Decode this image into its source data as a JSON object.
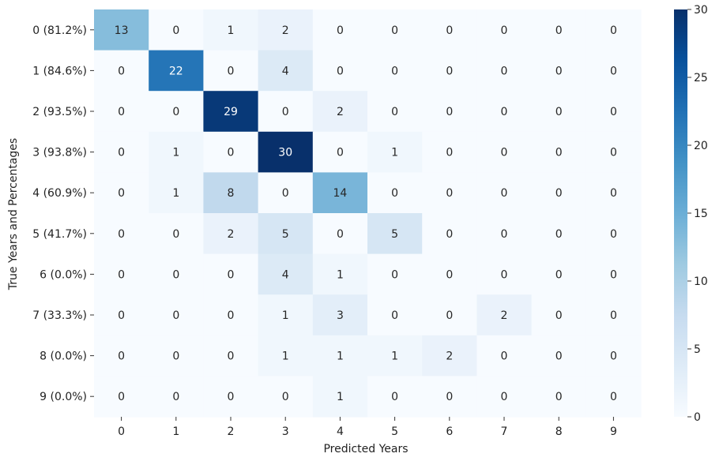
{
  "chart_data": {
    "type": "heatmap",
    "title": "",
    "xlabel": "Predicted Years",
    "ylabel": "True Years and Percentages",
    "x_categories": [
      "0",
      "1",
      "2",
      "3",
      "4",
      "5",
      "6",
      "7",
      "8",
      "9"
    ],
    "y_categories": [
      "0 (81.2%)",
      "1 (84.6%)",
      "2 (93.5%)",
      "3 (93.8%)",
      "4 (60.9%)",
      "5 (41.7%)",
      "6 (0.0%)",
      "7 (33.3%)",
      "8 (0.0%)",
      "9 (0.0%)"
    ],
    "values": [
      [
        13,
        0,
        1,
        2,
        0,
        0,
        0,
        0,
        0,
        0
      ],
      [
        0,
        22,
        0,
        4,
        0,
        0,
        0,
        0,
        0,
        0
      ],
      [
        0,
        0,
        29,
        0,
        2,
        0,
        0,
        0,
        0,
        0
      ],
      [
        0,
        1,
        0,
        30,
        0,
        1,
        0,
        0,
        0,
        0
      ],
      [
        0,
        1,
        8,
        0,
        14,
        0,
        0,
        0,
        0,
        0
      ],
      [
        0,
        0,
        2,
        5,
        0,
        5,
        0,
        0,
        0,
        0
      ],
      [
        0,
        0,
        0,
        4,
        1,
        0,
        0,
        0,
        0,
        0
      ],
      [
        0,
        0,
        0,
        1,
        3,
        0,
        0,
        2,
        0,
        0
      ],
      [
        0,
        0,
        0,
        1,
        1,
        1,
        2,
        0,
        0,
        0
      ],
      [
        0,
        0,
        0,
        0,
        1,
        0,
        0,
        0,
        0,
        0
      ]
    ],
    "colormap": "Blues",
    "vmin": 0,
    "vmax": 30,
    "colorbar_ticks": [
      0,
      5,
      10,
      15,
      20,
      25,
      30
    ],
    "grid": false,
    "annotations": true
  }
}
